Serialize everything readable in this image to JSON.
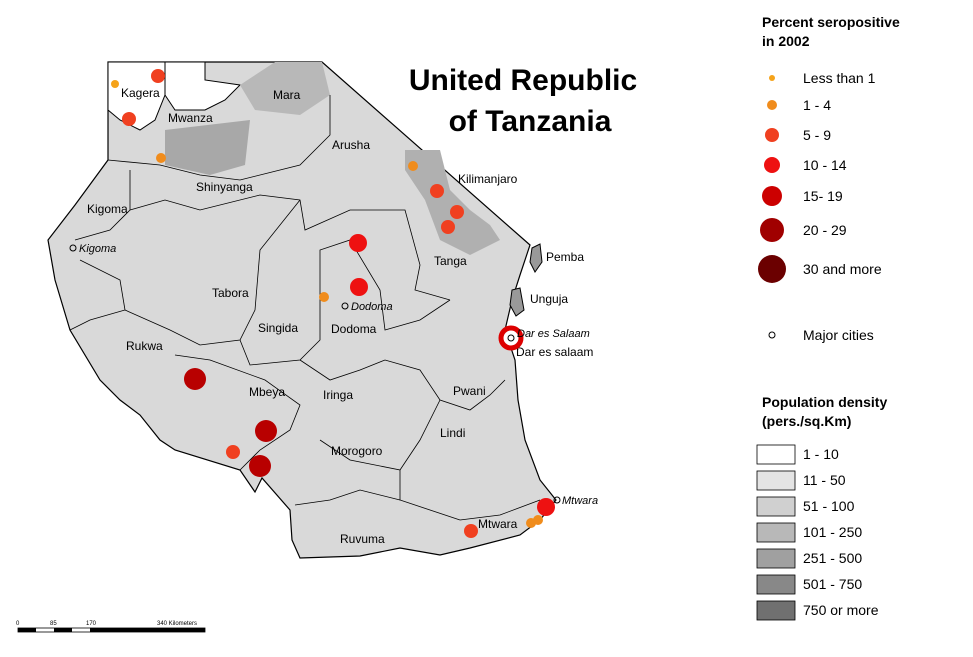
{
  "title": [
    "United Republic",
    "of Tanzania"
  ],
  "regions": [
    "Kagera",
    "Mara",
    "Mwanza",
    "Arusha",
    "Kilimanjaro",
    "Shinyanga",
    "Kigoma",
    "Tanga",
    "Pemba",
    "Unguja",
    "Tabora",
    "Singida",
    "Dodoma",
    "Rukwa",
    "Mbeya",
    "Iringa",
    "Pwani",
    "Dar es salaam",
    "Lindi",
    "Morogoro",
    "Mtwara",
    "Ruvuma"
  ],
  "cities": [
    "Kigoma",
    "Dodoma",
    "Dar es Salaam",
    "Mtwara"
  ],
  "legend_seropositive": {
    "title": [
      "Percent seropositive",
      "in 2002"
    ],
    "items": [
      "Less than 1",
      "1 - 4",
      "5 - 9",
      "10 - 14",
      "15- 19",
      "20 - 29",
      "30 and more"
    ],
    "cities": "Major cities"
  },
  "legend_density": {
    "title": [
      "Population density",
      "(pers./sq.Km)"
    ],
    "items": [
      "1 - 10",
      "11 - 50",
      "51 - 100",
      "101 - 250",
      "251 - 500",
      "501 - 750",
      "750 or more"
    ]
  },
  "scale_bar": [
    "0",
    "85",
    "170",
    "340 Kilometers"
  ]
}
